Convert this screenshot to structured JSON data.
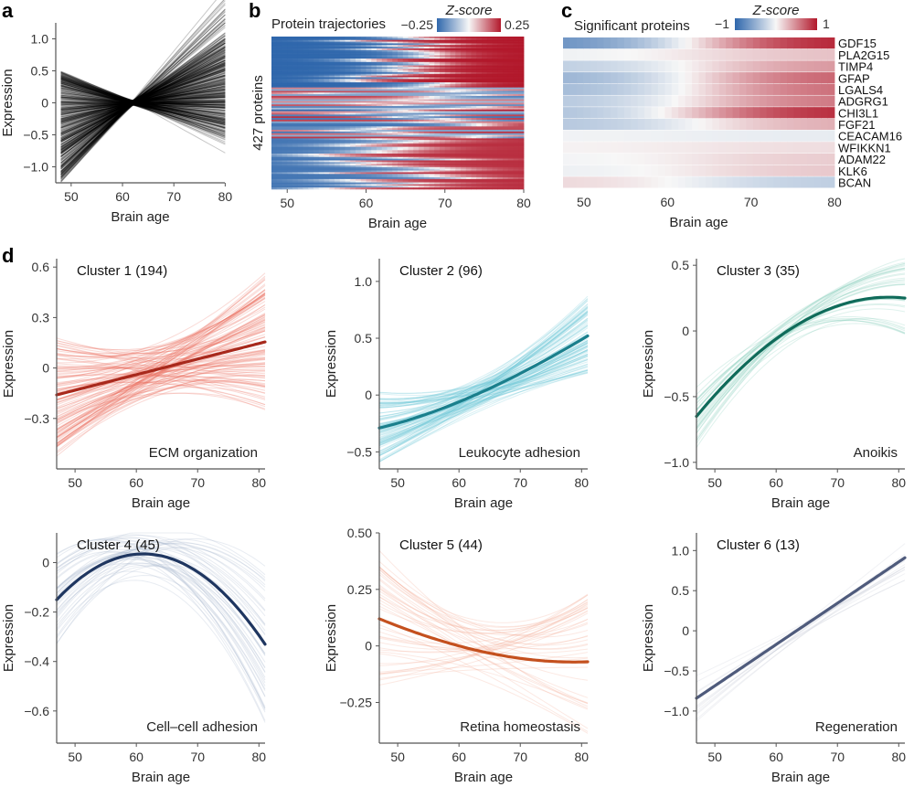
{
  "panel_labels": [
    "a",
    "b",
    "c",
    "d"
  ],
  "chart_data": [
    {
      "id": "a",
      "type": "line",
      "title": "",
      "xlabel": "Brain age",
      "ylabel": "Expression",
      "xlim": [
        48,
        80
      ],
      "ylim": [
        -1.25,
        1.25
      ],
      "xticks": [
        "50",
        "60",
        "70",
        "80"
      ],
      "xtick_values": [
        50,
        60,
        70,
        80
      ],
      "yticks": [
        "1.0",
        "0.5",
        "0",
        "−0.5",
        "−1.0"
      ],
      "ytick_values": [
        1.0,
        0.5,
        0,
        -0.5,
        -1.0
      ],
      "n_trajectories": 427,
      "line_color": "#000000",
      "pivot_age": 62,
      "start_range": [
        -1.25,
        0.5
      ],
      "end_range": [
        -0.65,
        1.2
      ]
    },
    {
      "id": "b",
      "type": "heatmap",
      "title": "Protein trajectories",
      "ylabel": "427 proteins",
      "xlabel": "Brain age",
      "xlim": [
        48,
        80
      ],
      "xticks": [
        "50",
        "60",
        "70",
        "80"
      ],
      "xtick_values": [
        50,
        60,
        70,
        80
      ],
      "colorbar": {
        "label": "Z-score",
        "min_label": "−0.25",
        "max_label": "0.25",
        "min": -0.25,
        "max": 0.25,
        "low_color": "#2f67ac",
        "mid_color": "#f7f7f7",
        "high_color": "#b2182b"
      },
      "n_rows": 427,
      "row_groups": [
        {
          "pattern": "increasing",
          "fraction": 0.34
        },
        {
          "pattern": "mixed",
          "fraction": 0.33
        },
        {
          "pattern": "increasing-moderate",
          "fraction": 0.33
        }
      ]
    },
    {
      "id": "c",
      "type": "heatmap",
      "title": "Significant proteins",
      "xlabel": "Brain age",
      "xlim": [
        48,
        80
      ],
      "xticks": [
        "50",
        "60",
        "70",
        "80"
      ],
      "xtick_values": [
        50,
        60,
        70,
        80
      ],
      "colorbar": {
        "label": "Z-score",
        "min_label": "−1",
        "max_label": "1",
        "min": -1,
        "max": 1,
        "low_color": "#2f67ac",
        "mid_color": "#f7f7f7",
        "high_color": "#b2182b"
      },
      "rows": [
        {
          "gene": "GDF15",
          "start": -0.75,
          "end": 1.0
        },
        {
          "gene": "PLA2G15",
          "start": -0.05,
          "end": 0.25
        },
        {
          "gene": "TIMP4",
          "start": -0.3,
          "end": 0.45
        },
        {
          "gene": "GFAP",
          "start": -0.5,
          "end": 0.7
        },
        {
          "gene": "LGALS4",
          "start": -0.45,
          "end": 0.65
        },
        {
          "gene": "ADGRG1",
          "start": -0.35,
          "end": 0.6
        },
        {
          "gene": "CHI3L1",
          "start": -0.4,
          "end": 0.95
        },
        {
          "gene": "FGF21",
          "start": -0.35,
          "end": 0.35
        },
        {
          "gene": "CEACAM16",
          "start": -0.03,
          "end": -0.08
        },
        {
          "gene": "WFIKKN1",
          "start": 0.02,
          "end": 0.12
        },
        {
          "gene": "ADAM22",
          "start": -0.03,
          "end": 0.2
        },
        {
          "gene": "KLK6",
          "start": -0.06,
          "end": 0.22
        },
        {
          "gene": "BCAN",
          "start": 0.15,
          "end": -0.3
        }
      ]
    },
    {
      "id": "d1",
      "type": "line",
      "title": "Cluster 1 (194)",
      "annotation": "ECM organization",
      "xlabel": "Brain age",
      "ylabel": "Expression",
      "xlim": [
        47,
        81
      ],
      "ylim": [
        -0.6,
        0.65
      ],
      "xticks": [
        "50",
        "60",
        "70",
        "80"
      ],
      "xtick_values": [
        50,
        60,
        70,
        80
      ],
      "yticks": [
        "0.6",
        "0.3",
        "0",
        "−0.3"
      ],
      "ytick_values": [
        0.6,
        0.3,
        0,
        -0.3
      ],
      "mean_curve": {
        "x": [
          47,
          81
        ],
        "y": [
          -0.16,
          0.155
        ],
        "shape": "linear"
      },
      "mean_color": "#a8291c",
      "thin_color": "#ea6b5c",
      "annotation_color": "#e4574a",
      "n_trajectories": 194,
      "spread_start": 0.35,
      "spread_end": 0.4
    },
    {
      "id": "d2",
      "type": "line",
      "title": "Cluster 2 (96)",
      "annotation": "Leukocyte adhesion",
      "xlabel": "Brain age",
      "ylabel": "Expression",
      "xlim": [
        47,
        81
      ],
      "ylim": [
        -0.65,
        1.2
      ],
      "xticks": [
        "50",
        "60",
        "70",
        "80"
      ],
      "xtick_values": [
        50,
        60,
        70,
        80
      ],
      "yticks": [
        "1.0",
        "0.5",
        "0",
        "−0.5"
      ],
      "ytick_values": [
        1.0,
        0.5,
        0,
        -0.5
      ],
      "mean_curve": {
        "x": [
          47,
          60,
          70,
          81
        ],
        "y": [
          -0.29,
          -0.06,
          0.19,
          0.52
        ],
        "shape": "quadratic"
      },
      "mean_color": "#1a7f8c",
      "thin_color": "#6cc8d8",
      "annotation_color": "#5ec7db",
      "n_trajectories": 96,
      "spread_start": 0.3,
      "spread_end": 0.35
    },
    {
      "id": "d3",
      "type": "line",
      "title": "Cluster 3 (35)",
      "annotation": "Anoikis",
      "xlabel": "Brain age",
      "ylabel": "Expression",
      "xlim": [
        47,
        81
      ],
      "ylim": [
        -1.05,
        0.55
      ],
      "xticks": [
        "50",
        "60",
        "70",
        "80"
      ],
      "xtick_values": [
        50,
        60,
        70,
        80
      ],
      "yticks": [
        "0.5",
        "0",
        "−0.5",
        "−1.0"
      ],
      "ytick_values": [
        0.5,
        0,
        -0.5,
        -1.0
      ],
      "mean_curve": {
        "x": [
          47,
          60,
          70,
          81
        ],
        "y": [
          -0.65,
          -0.06,
          0.19,
          0.25
        ],
        "shape": "quadratic"
      },
      "mean_color": "#0f6b5a",
      "thin_color": "#7fcdb8",
      "annotation_color": "#2aa88e",
      "n_trajectories": 35,
      "spread_start": 0.25,
      "spread_end": 0.3
    },
    {
      "id": "d4",
      "type": "line",
      "title": "Cluster 4 (45)",
      "annotation": "Cell–cell adhesion",
      "xlabel": "Brain age",
      "ylabel": "Expression",
      "xlim": [
        47,
        81
      ],
      "ylim": [
        -0.73,
        0.12
      ],
      "xticks": [
        "50",
        "60",
        "70",
        "80"
      ],
      "xtick_values": [
        50,
        60,
        70,
        80
      ],
      "yticks": [
        "0",
        "−0.2",
        "−0.4",
        "−0.6"
      ],
      "ytick_values": [
        0,
        -0.2,
        -0.4,
        -0.6
      ],
      "mean_curve": {
        "x": [
          47,
          61,
          81
        ],
        "y": [
          -0.15,
          0.035,
          -0.33
        ],
        "shape": "quadratic"
      },
      "mean_color": "#1f3660",
      "thin_color": "#a5b2cc",
      "annotation_color": "#3e5896",
      "n_trajectories": 45,
      "spread_start": 0.2,
      "spread_end": 0.3
    },
    {
      "id": "d5",
      "type": "line",
      "title": "Cluster 5 (44)",
      "annotation": "Retina homeostasis",
      "xlabel": "Brain age",
      "ylabel": "Expression",
      "xlim": [
        47,
        81
      ],
      "ylim": [
        -0.43,
        0.5
      ],
      "xticks": [
        "50",
        "60",
        "70",
        "80"
      ],
      "xtick_values": [
        50,
        60,
        70,
        80
      ],
      "yticks": [
        "0.50",
        "0.25",
        "0",
        "−0.25"
      ],
      "ytick_values": [
        0.5,
        0.25,
        0,
        -0.25
      ],
      "mean_curve": {
        "x": [
          47,
          60,
          70,
          81
        ],
        "y": [
          0.12,
          0.0,
          -0.055,
          -0.07
        ],
        "shape": "quadratic"
      },
      "mean_color": "#c4501e",
      "thin_color": "#f4a98e",
      "annotation_color": "#f59d84",
      "n_trajectories": 44,
      "spread_start": 0.3,
      "spread_end": 0.3
    },
    {
      "id": "d6",
      "type": "line",
      "title": "Cluster 6 (13)",
      "annotation": "Regeneration",
      "xlabel": "Brain age",
      "ylabel": "Expression",
      "xlim": [
        47,
        81
      ],
      "ylim": [
        -1.4,
        1.22
      ],
      "xticks": [
        "50",
        "60",
        "70",
        "80"
      ],
      "xtick_values": [
        50,
        60,
        70,
        80
      ],
      "yticks": [
        "1.0",
        "0.5",
        "0",
        "−0.5",
        "−1.0"
      ],
      "ytick_values": [
        1.0,
        0.5,
        0,
        -0.5,
        -1.0
      ],
      "mean_curve": {
        "x": [
          47,
          81
        ],
        "y": [
          -0.84,
          0.91
        ],
        "shape": "linear"
      },
      "mean_color": "#4f5b7c",
      "thin_color": "#c8ccd6",
      "annotation_color": "#8a93b8",
      "n_trajectories": 13,
      "spread_start": 0.3,
      "spread_end": 0.3
    }
  ]
}
